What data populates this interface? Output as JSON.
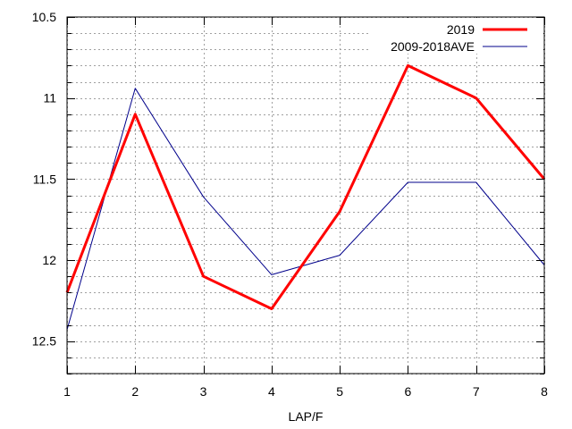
{
  "chart_data": {
    "type": "line",
    "title": "",
    "xlabel": "LAP/F",
    "ylabel": "",
    "x": [
      1,
      2,
      3,
      4,
      5,
      6,
      7,
      8
    ],
    "xlim": [
      1,
      8
    ],
    "ylim": [
      10.5,
      12.7
    ],
    "y_inverted": true,
    "y_ticks_major": [
      10.5,
      11,
      11.5,
      12,
      12.5
    ],
    "y_tick_labels": [
      "10.5",
      "11",
      "11.5",
      "12",
      "12.5"
    ],
    "y_ticks_minor_step": 0.1,
    "x_tick_labels": [
      "1",
      "2",
      "3",
      "4",
      "5",
      "6",
      "7",
      "8"
    ],
    "grid": true,
    "legend_position": "top-right",
    "series": [
      {
        "name": "2019",
        "color": "#ff0000",
        "values": [
          12.2,
          11.1,
          12.1,
          12.3,
          11.7,
          10.8,
          11.0,
          11.5
        ]
      },
      {
        "name": "2009-2018AVE",
        "color": "#00008b",
        "values": [
          12.43,
          10.94,
          11.61,
          12.09,
          11.97,
          11.52,
          11.52,
          12.03
        ]
      }
    ]
  }
}
